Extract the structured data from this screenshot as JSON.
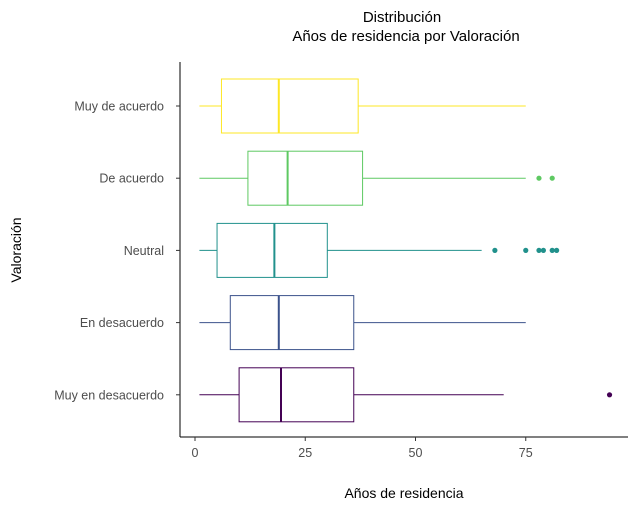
{
  "chart_data": {
    "type": "boxplot",
    "orientation": "horizontal",
    "title": "Distribución",
    "subtitle": "Años de residencia por Valoración",
    "xlabel": "Años de residencia",
    "ylabel": "Valoración",
    "xlim": [
      -3,
      98
    ],
    "xticks": [
      0,
      25,
      50,
      75
    ],
    "grid": false,
    "legend": "none",
    "categories": [
      "Muy de acuerdo",
      "De acuerdo",
      "Neutral",
      "En desacuerdo",
      "Muy en desacuerdo"
    ],
    "series": [
      {
        "category": "Muy de acuerdo",
        "color": "#fde725",
        "whisker_low": 1,
        "q1": 6,
        "median": 19,
        "q3": 37,
        "whisker_high": 75,
        "outliers": []
      },
      {
        "category": "De acuerdo",
        "color": "#5ec962",
        "whisker_low": 1,
        "q1": 12,
        "median": 21,
        "q3": 38,
        "whisker_high": 75,
        "outliers": [
          78,
          81
        ]
      },
      {
        "category": "Neutral",
        "color": "#21918c",
        "whisker_low": 1,
        "q1": 5,
        "median": 18,
        "q3": 30,
        "whisker_high": 65,
        "outliers": [
          68,
          75,
          78,
          79,
          81,
          82
        ]
      },
      {
        "category": "En desacuerdo",
        "color": "#3b528b",
        "whisker_low": 1,
        "q1": 8,
        "median": 19,
        "q3": 36,
        "whisker_high": 75,
        "outliers": []
      },
      {
        "category": "Muy en desacuerdo",
        "color": "#440154",
        "whisker_low": 1,
        "q1": 10,
        "median": 19.5,
        "q3": 36,
        "whisker_high": 70,
        "outliers": [
          94
        ]
      }
    ]
  }
}
